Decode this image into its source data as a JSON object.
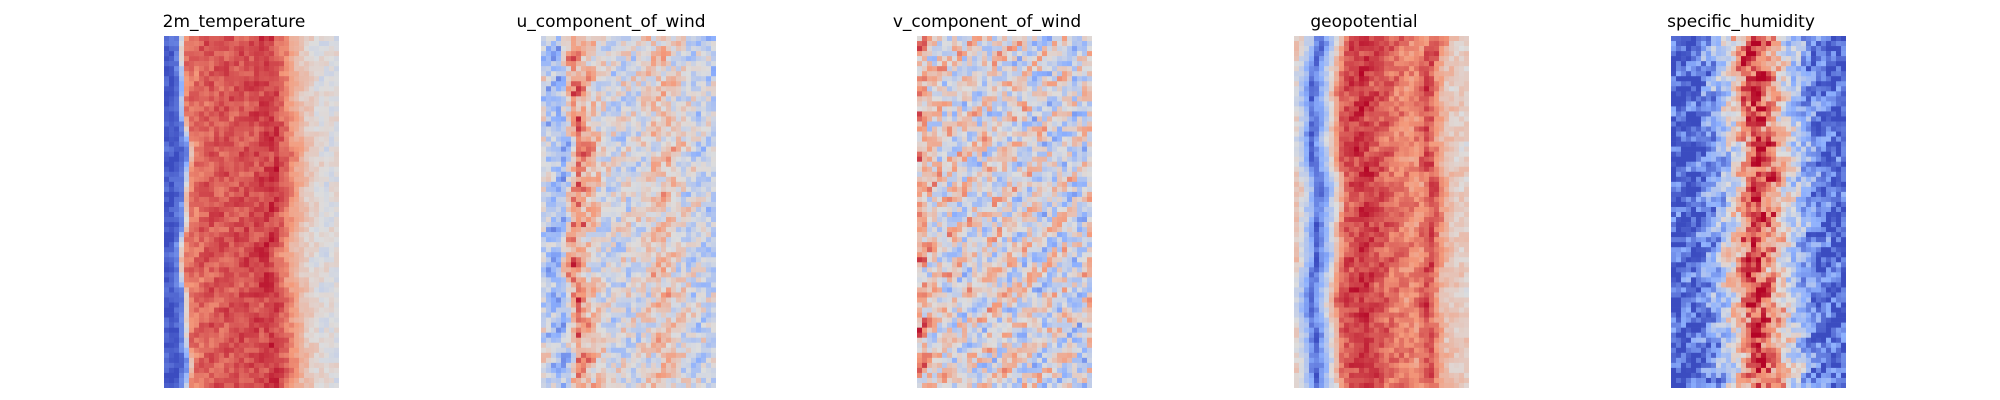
{
  "figure": {
    "colormap": "coolwarm",
    "colormap_stops": [
      "#3b4cc0",
      "#8db0fe",
      "#dddddd",
      "#f49a7b",
      "#b40426"
    ],
    "axes": "off"
  },
  "chart_data": [
    {
      "type": "heatmap",
      "title": "2m_temperature",
      "grid": false,
      "profile": [
        [
          0.0,
          0.05
        ],
        [
          0.05,
          0.02
        ],
        [
          0.1,
          0.15
        ],
        [
          0.14,
          0.8
        ],
        [
          0.25,
          0.85
        ],
        [
          0.55,
          0.88
        ],
        [
          0.62,
          0.92
        ],
        [
          0.7,
          0.8
        ],
        [
          0.8,
          0.6
        ],
        [
          0.9,
          0.5
        ],
        [
          1.0,
          0.5
        ]
      ]
    },
    {
      "type": "heatmap",
      "title": "u_component_of_wind",
      "grid": false,
      "profile": [
        [
          0.0,
          0.5
        ],
        [
          0.05,
          0.35
        ],
        [
          0.12,
          0.3
        ],
        [
          0.2,
          0.8
        ],
        [
          0.28,
          0.62
        ],
        [
          0.38,
          0.45
        ],
        [
          0.55,
          0.48
        ],
        [
          0.7,
          0.62
        ],
        [
          0.85,
          0.45
        ],
        [
          1.0,
          0.42
        ]
      ]
    },
    {
      "type": "heatmap",
      "title": "v_component_of_wind",
      "grid": false,
      "profile": [
        [
          0.0,
          0.7
        ],
        [
          0.1,
          0.55
        ],
        [
          0.3,
          0.5
        ],
        [
          0.5,
          0.52
        ],
        [
          0.7,
          0.48
        ],
        [
          0.85,
          0.5
        ],
        [
          0.92,
          0.4
        ],
        [
          1.0,
          0.55
        ]
      ]
    },
    {
      "type": "heatmap",
      "title": "geopotential",
      "grid": false,
      "profile": [
        [
          0.0,
          0.6
        ],
        [
          0.08,
          0.3
        ],
        [
          0.12,
          0.05
        ],
        [
          0.2,
          0.4
        ],
        [
          0.28,
          0.85
        ],
        [
          0.4,
          0.92
        ],
        [
          0.6,
          0.8
        ],
        [
          0.7,
          0.75
        ],
        [
          0.78,
          0.9
        ],
        [
          0.88,
          0.6
        ],
        [
          1.0,
          0.55
        ]
      ]
    },
    {
      "type": "heatmap",
      "title": "specific_humidity",
      "grid": false,
      "profile": [
        [
          0.0,
          0.05
        ],
        [
          0.15,
          0.08
        ],
        [
          0.28,
          0.3
        ],
        [
          0.38,
          0.6
        ],
        [
          0.48,
          0.95
        ],
        [
          0.58,
          0.75
        ],
        [
          0.68,
          0.45
        ],
        [
          0.8,
          0.18
        ],
        [
          0.9,
          0.08
        ],
        [
          1.0,
          0.05
        ]
      ]
    }
  ]
}
